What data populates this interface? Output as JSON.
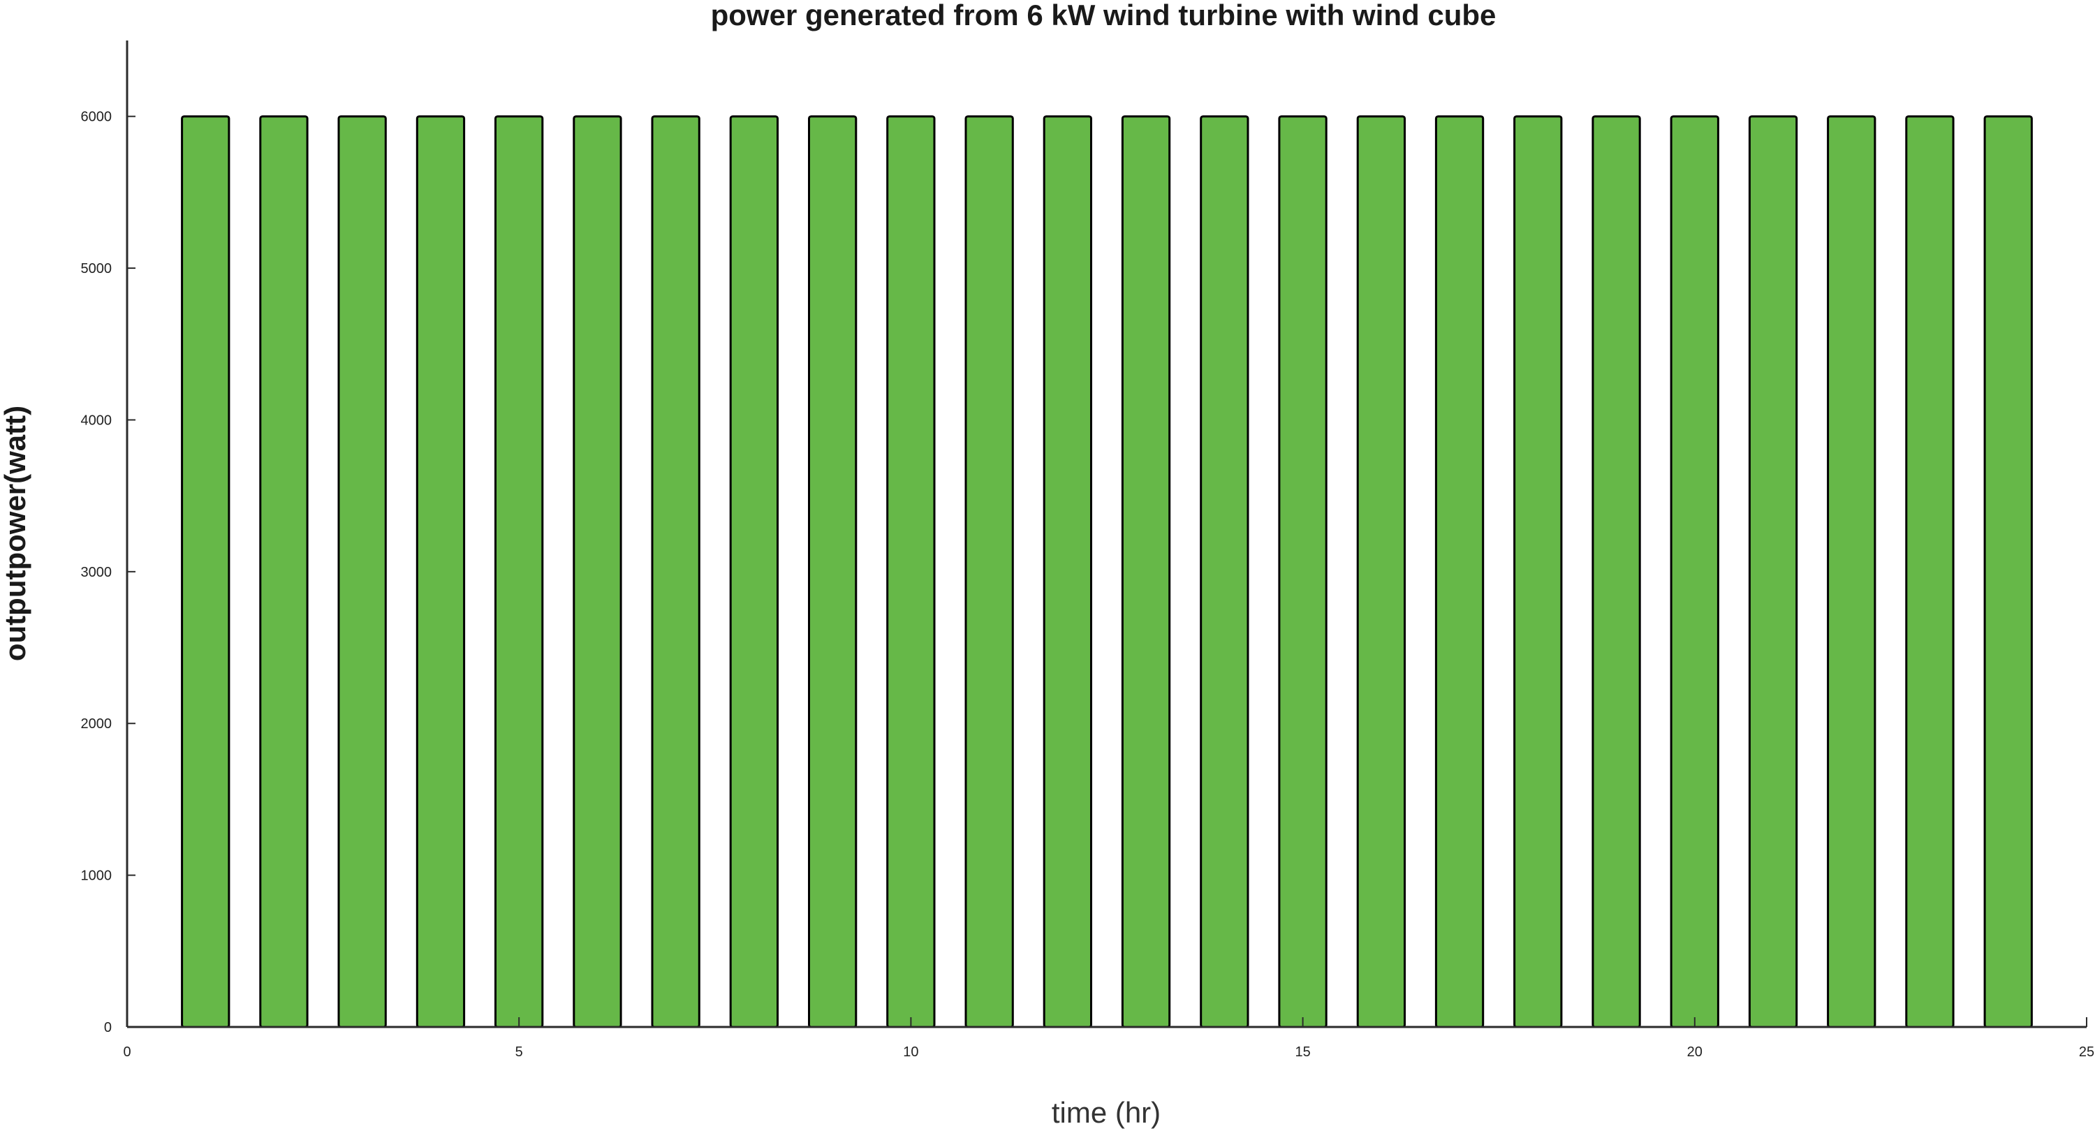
{
  "chart_data": {
    "type": "bar",
    "title": "power generated from 6 kW wind turbine with wind cube",
    "xlabel": "time (hr)",
    "ylabel": "outputpower(watt)",
    "x": [
      1,
      2,
      3,
      4,
      5,
      6,
      7,
      8,
      9,
      10,
      11,
      12,
      13,
      14,
      15,
      16,
      17,
      18,
      19,
      20,
      21,
      22,
      23,
      24
    ],
    "values": [
      6000,
      6000,
      6000,
      6000,
      6000,
      6000,
      6000,
      6000,
      6000,
      6000,
      6000,
      6000,
      6000,
      6000,
      6000,
      6000,
      6000,
      6000,
      6000,
      6000,
      6000,
      6000,
      6000,
      6000
    ],
    "xlim": [
      0,
      25
    ],
    "ylim": [
      0,
      6500
    ],
    "xticks": [
      0,
      5,
      10,
      15,
      20,
      25
    ],
    "yticks": [
      0,
      1000,
      2000,
      3000,
      4000,
      5000,
      6000
    ],
    "bar_color": "#66b848",
    "bar_edge_color": "#000000",
    "grid": false,
    "legend": "none"
  }
}
